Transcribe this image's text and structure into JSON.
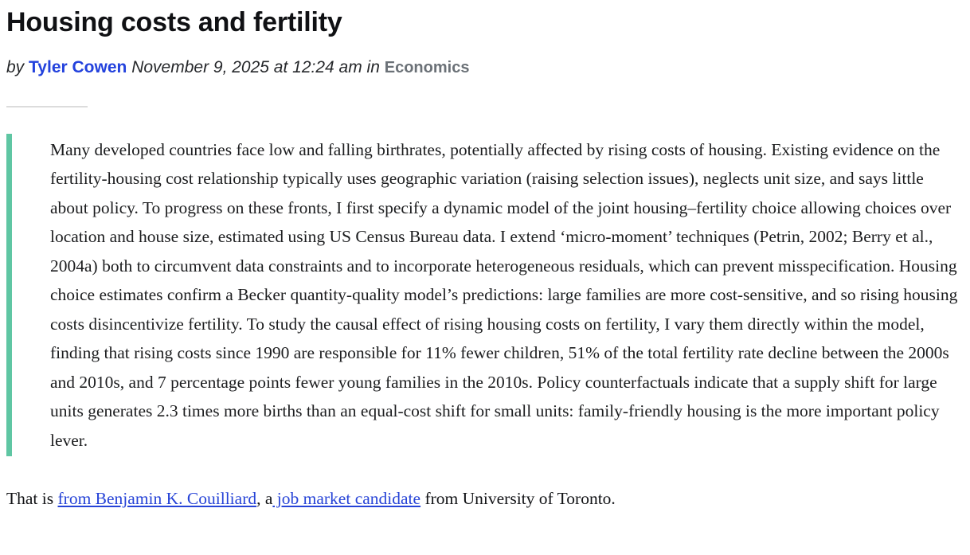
{
  "post": {
    "title": "Housing costs and fertility",
    "byline": {
      "by_label": "by",
      "author": "Tyler Cowen",
      "date": "November 9, 2025 at 12:24 am",
      "in_label": "in",
      "category": "Economics"
    },
    "abstract": "Many developed countries face low and falling birthrates, potentially affected by rising costs of housing. Existing evidence on the fertility-housing cost relationship typically uses geographic variation (raising selection issues), neglects unit size, and says little about policy. To progress on these fronts, I first specify a dynamic model of the joint housing–fertility choice allowing choices over location and house size, estimated using US Census Bureau data. I extend ‘micro-moment’ techniques (Petrin, 2002; Berry et al., 2004a) both to circumvent data constraints and to incorporate heterogeneous residuals, which can prevent misspecification. Housing choice estimates confirm a Becker quantity-quality model’s predictions: large families are more cost-sensitive, and so rising housing costs disincentivize fertility. To study the causal effect of rising housing costs on fertility, I vary them directly within the model, finding that rising costs since 1990 are responsible for 11% fewer children, 51% of the total fertility rate decline between the 2000s and 2010s, and 7 percentage points fewer young families in the 2010s. Policy counterfactuals indicate that a supply shift for large units generates 2.3 times more births than an equal-cost shift for small units: family-friendly housing is the more important policy lever.",
    "closing": {
      "prefix": "That is ",
      "link1": "from Benjamin K. Couilliard",
      "middle": ", a",
      "link2": " job market candidate",
      "suffix": " from University of Toronto."
    }
  },
  "colors": {
    "link_blue": "#2342dd",
    "serif_link_blue": "#2643d7",
    "category_gray": "#6b7177",
    "quote_border_teal": "#5fc6a3",
    "divider_gray": "#dcdcdc"
  }
}
